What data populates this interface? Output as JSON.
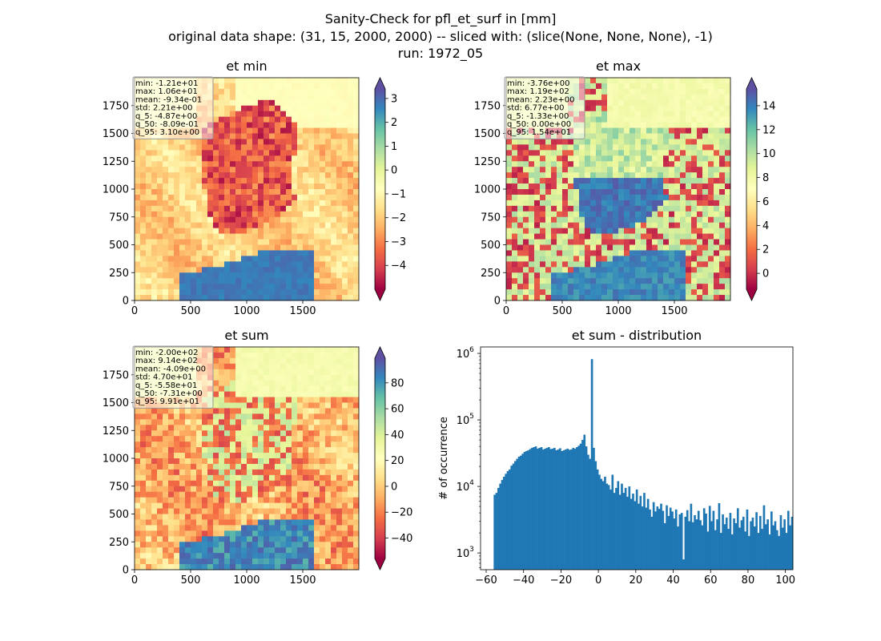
{
  "figure": {
    "title_lines": [
      "Sanity-Check for pfl_et_surf in [mm]",
      "original data shape: (31, 15, 2000, 2000) -- sliced with: (slice(None, None, None), -1)",
      "run: 1972_05"
    ]
  },
  "chart_data": [
    {
      "type": "heatmap",
      "title": "et min",
      "xlim": [
        0,
        2000
      ],
      "ylim": [
        0,
        2000
      ],
      "xticks": [
        0,
        500,
        1000,
        1500
      ],
      "yticks": [
        0,
        250,
        500,
        750,
        1000,
        1250,
        1500,
        1750
      ],
      "colormap": "Spectral",
      "colorbar": {
        "range": [
          -5,
          3.4
        ],
        "ticks": [
          3,
          2,
          1,
          0,
          -1,
          -2,
          -3,
          -4
        ],
        "tick_labels": [
          "3",
          "2",
          "1",
          "0",
          "−1",
          "−2",
          "−3",
          "−4"
        ],
        "extend": "both"
      },
      "stats": [
        "min: -1.21e+01",
        "max: 1.06e+01",
        "mean: -9.34e-01",
        "std: 2.21e+00",
        "q_5: -4.87e+00",
        "q_50: -8.09e-01",
        "q_95: 3.10e+00"
      ]
    },
    {
      "type": "heatmap",
      "title": "et max",
      "xlim": [
        0,
        2000
      ],
      "ylim": [
        0,
        2000
      ],
      "xticks": [
        0,
        500,
        1000,
        1500
      ],
      "yticks": [
        0,
        250,
        500,
        750,
        1000,
        1250,
        1500,
        1750
      ],
      "colormap": "Spectral",
      "colorbar": {
        "range": [
          -1.33,
          15.4
        ],
        "ticks": [
          14,
          12,
          10,
          8,
          6,
          4,
          2,
          0
        ],
        "tick_labels": [
          "14",
          "12",
          "10",
          "8",
          "6",
          "4",
          "2",
          "0"
        ],
        "extend": "both"
      },
      "stats": [
        "min: -3.76e+00",
        "max: 1.19e+02",
        "mean: 2.23e+00",
        "std: 6.77e+00",
        "q_5: -1.33e+00",
        "q_50: 0.00e+00",
        "q_95: 1.54e+01"
      ]
    },
    {
      "type": "heatmap",
      "title": "et sum",
      "xlim": [
        0,
        2000
      ],
      "ylim": [
        0,
        2000
      ],
      "xticks": [
        0,
        500,
        1000,
        1500
      ],
      "yticks": [
        0,
        250,
        500,
        750,
        1000,
        1250,
        1500,
        1750
      ],
      "colormap": "Spectral",
      "colorbar": {
        "range": [
          -55.8,
          99.1
        ],
        "ticks": [
          80,
          60,
          40,
          20,
          0,
          -20,
          -40
        ],
        "tick_labels": [
          "80",
          "60",
          "40",
          "20",
          "0",
          "−20",
          "−40"
        ],
        "extend": "both"
      },
      "stats": [
        "min: -2.00e+02",
        "max: 9.14e+02",
        "mean: -4.09e+00",
        "std: 4.70e+01",
        "q_5: -5.58e+01",
        "q_50: -7.31e+00",
        "q_95: 9.91e+01"
      ]
    },
    {
      "type": "bar",
      "title": "et sum - distribution",
      "ylabel": "# of occurrence",
      "xlabel": "",
      "yscale": "log",
      "xlim": [
        -63,
        104
      ],
      "ylim": [
        560,
        1250000
      ],
      "xticks": [
        -60,
        -40,
        -20,
        0,
        20,
        40,
        60,
        80,
        100
      ],
      "xtick_labels": [
        "−60",
        "−40",
        "−20",
        "0",
        "20",
        "40",
        "60",
        "80",
        "100"
      ],
      "yticks": [
        1000,
        10000,
        100000,
        1000000
      ],
      "ytick_labels": [
        [
          "10",
          "3"
        ],
        [
          "10",
          "4"
        ],
        [
          "10",
          "5"
        ],
        [
          "10",
          "6"
        ]
      ],
      "color": "#1f77b4",
      "bin_width": 1,
      "bin_start": -56,
      "counts": [
        7500,
        8000,
        9500,
        11000,
        12500,
        14000,
        15500,
        17000,
        18000,
        20500,
        22000,
        24000,
        26000,
        28000,
        29000,
        31000,
        33000,
        34000,
        35000,
        36500,
        38000,
        39000,
        40000,
        37000,
        38000,
        39000,
        36000,
        37000,
        38000,
        39000,
        36500,
        37000,
        38000,
        35000,
        36000,
        37500,
        34000,
        35000,
        36000,
        37000,
        35500,
        36000,
        38000,
        37000,
        39000,
        41000,
        44000,
        50000,
        60000,
        40000,
        30000,
        26000,
        820000,
        38000,
        24000,
        18000,
        15000,
        13000,
        12000,
        14000,
        11000,
        10500,
        9000,
        15000,
        8000,
        9500,
        12000,
        7500,
        11000,
        8000,
        9500,
        7000,
        10000,
        6500,
        7800,
        6000,
        9000,
        5500,
        7200,
        5000,
        8000,
        4800,
        6500,
        4500,
        3500,
        5800,
        4200,
        5000,
        4600,
        5500,
        4300,
        2800,
        5200,
        3600,
        4800,
        4200,
        3300,
        4500,
        2500,
        3800,
        4000,
        800,
        3500,
        4400,
        3000,
        5500,
        2900,
        3700,
        3200,
        4300,
        3100,
        2600,
        4700,
        3900,
        2100,
        5100,
        3000,
        4300,
        2200,
        3200,
        5600,
        2000,
        3800,
        2700,
        3400,
        2300,
        4000,
        1900,
        3300,
        2800,
        4700,
        2400,
        3100,
        3500,
        2100,
        4500,
        1800,
        3000,
        3400,
        2500,
        4100,
        2000,
        3600,
        2300,
        5200,
        2700,
        3200,
        1900,
        4200,
        2600,
        3000,
        2200,
        1800,
        3700,
        2400,
        3200,
        2000,
        4300,
        2600,
        3500
      ]
    }
  ]
}
